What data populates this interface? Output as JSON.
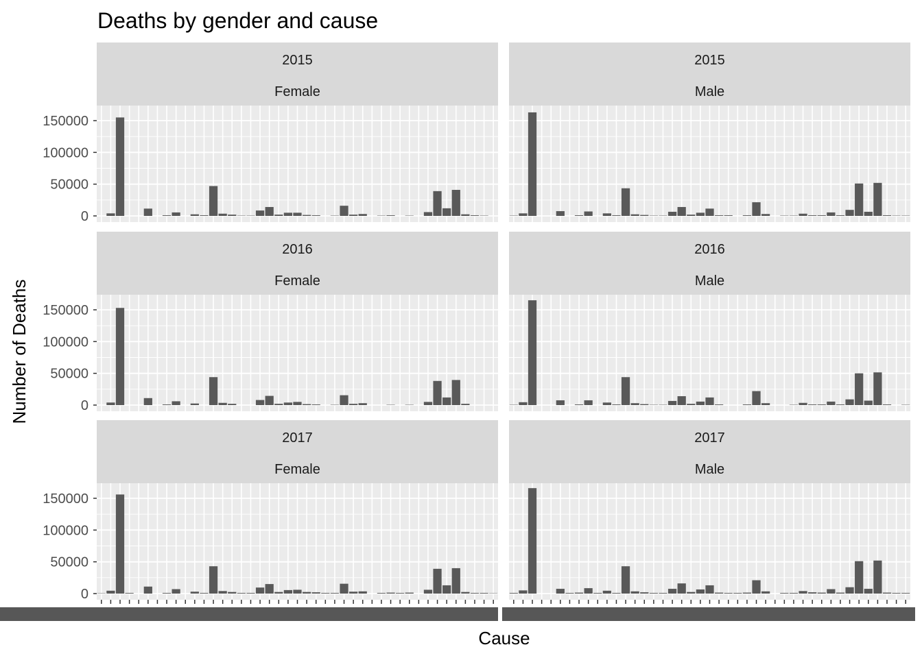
{
  "chart_data": {
    "type": "bar",
    "title": "Deaths by gender and cause",
    "xlabel": "Cause",
    "ylabel": "Number of Deaths",
    "ylim": [
      0,
      175000
    ],
    "yticks": [
      0,
      50000,
      100000,
      150000
    ],
    "ytick_labels": [
      "0",
      "50000",
      "100000",
      "150000"
    ],
    "n_causes": 43,
    "grid": true,
    "legend": "none",
    "bar_color": "#595959",
    "panel_bg": "#EBEBEB",
    "strip_bg": "#D9D9D9",
    "panels": [
      {
        "year": "2015",
        "gender": "Female",
        "values": [
          0,
          4000,
          155000,
          0,
          0,
          11500,
          0,
          1000,
          5500,
          0,
          2500,
          1000,
          47000,
          3500,
          2000,
          500,
          500,
          8500,
          14000,
          2000,
          5000,
          5000,
          1500,
          1000,
          0,
          500,
          16000,
          2000,
          3000,
          0,
          500,
          1000,
          0,
          500,
          0,
          6000,
          39000,
          12000,
          41000,
          2500,
          1000,
          500,
          0
        ]
      },
      {
        "year": "2015",
        "gender": "Male",
        "values": [
          500,
          4000,
          163000,
          0,
          0,
          7500,
          0,
          1000,
          7000,
          0,
          4000,
          1000,
          43500,
          2500,
          1500,
          500,
          500,
          6500,
          14000,
          2000,
          5000,
          11500,
          1000,
          1000,
          0,
          1000,
          21500,
          3000,
          0,
          500,
          500,
          3500,
          1000,
          1000,
          5500,
          1000,
          9500,
          51000,
          6500,
          52000,
          1000,
          500,
          500
        ]
      },
      {
        "year": "2016",
        "gender": "Female",
        "values": [
          0,
          4000,
          153000,
          0,
          0,
          11000,
          0,
          1000,
          6000,
          0,
          2500,
          0,
          44000,
          3500,
          2000,
          0,
          0,
          8000,
          14500,
          2000,
          4000,
          5000,
          1500,
          1000,
          0,
          500,
          15500,
          2000,
          3000,
          0,
          0,
          500,
          0,
          500,
          0,
          5000,
          38000,
          12000,
          39500,
          2000,
          0,
          0,
          0
        ]
      },
      {
        "year": "2016",
        "gender": "Male",
        "values": [
          500,
          4500,
          165000,
          0,
          0,
          7500,
          0,
          1000,
          7500,
          0,
          4000,
          1000,
          44000,
          3000,
          1500,
          500,
          500,
          6500,
          14000,
          2000,
          5500,
          12000,
          1000,
          0,
          0,
          1000,
          22000,
          3000,
          0,
          0,
          500,
          3500,
          1000,
          1000,
          5500,
          1000,
          9000,
          50000,
          7000,
          51500,
          1000,
          0,
          500
        ]
      },
      {
        "year": "2017",
        "gender": "Female",
        "values": [
          500,
          4500,
          156000,
          1000,
          0,
          11000,
          0,
          1000,
          7000,
          0,
          3000,
          1000,
          43000,
          4000,
          2500,
          1000,
          1000,
          9500,
          15000,
          2500,
          5500,
          6000,
          2500,
          2000,
          1000,
          1000,
          15500,
          3000,
          3500,
          0,
          1000,
          1500,
          1000,
          1500,
          0,
          6000,
          39000,
          13000,
          40000,
          2500,
          1000,
          1000,
          500
        ]
      },
      {
        "year": "2017",
        "gender": "Male",
        "values": [
          1000,
          5000,
          166000,
          0,
          0,
          7500,
          1000,
          1500,
          8500,
          1000,
          4500,
          1000,
          43000,
          3500,
          2000,
          1000,
          1000,
          7500,
          16000,
          2500,
          6500,
          13000,
          1500,
          1000,
          1000,
          1500,
          21000,
          3500,
          0,
          1000,
          1000,
          4000,
          2000,
          1500,
          7000,
          1500,
          10000,
          51000,
          7500,
          52000,
          1500,
          1000,
          1000
        ]
      }
    ]
  }
}
